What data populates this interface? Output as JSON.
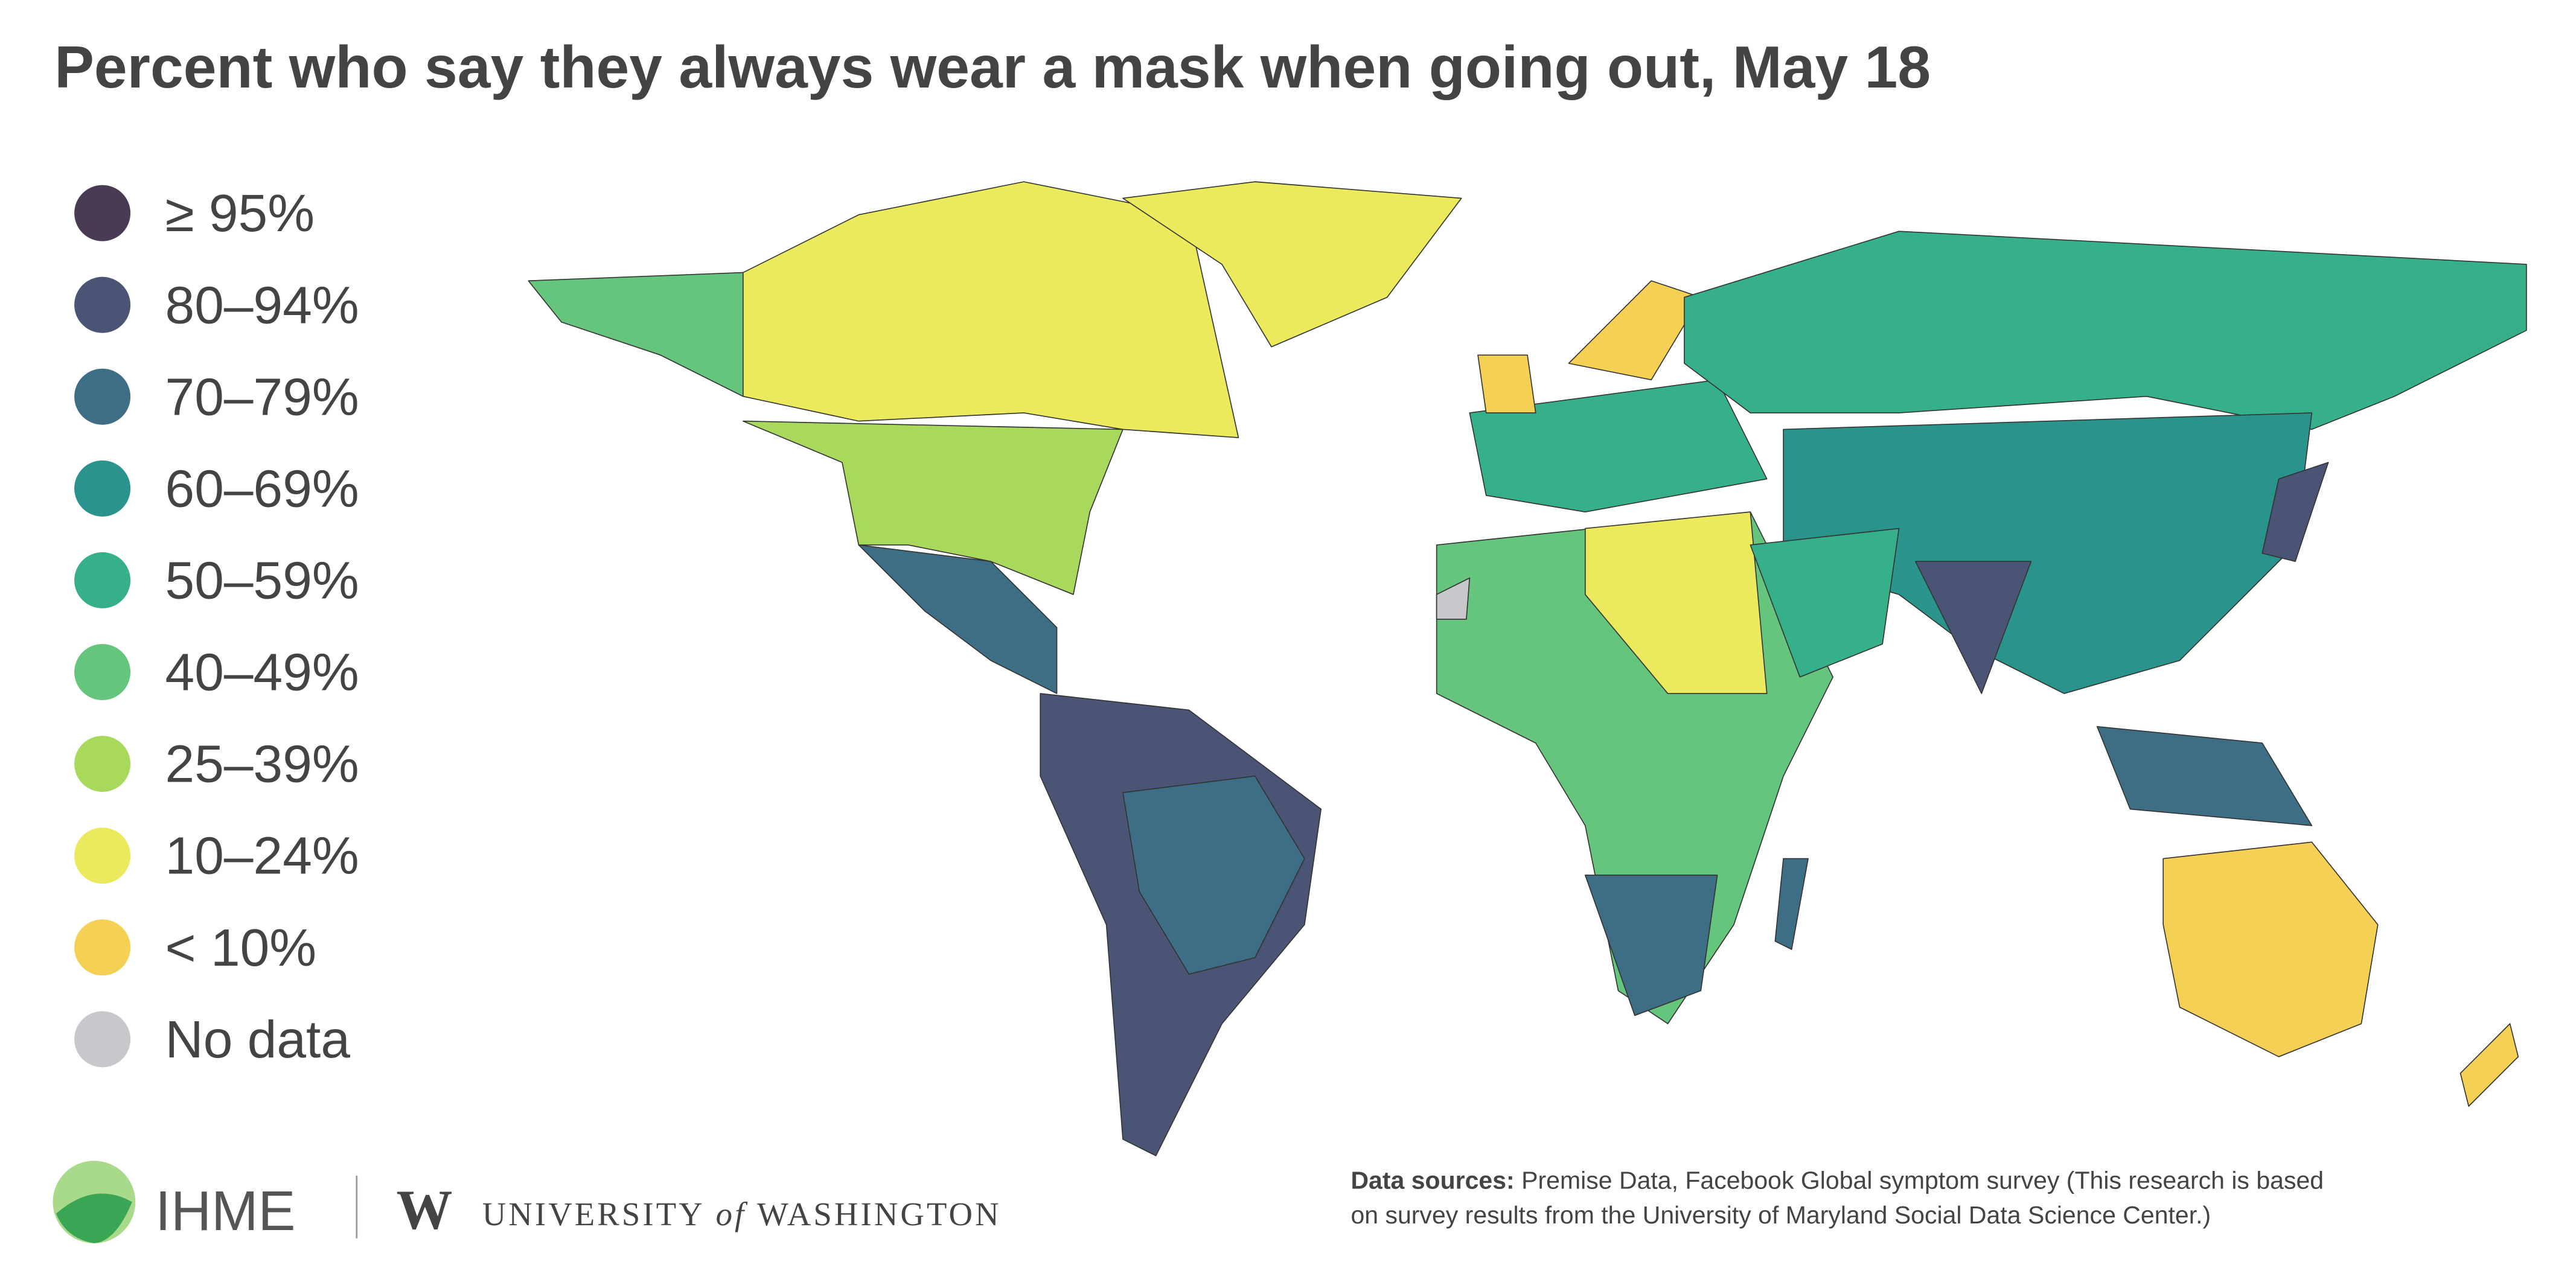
{
  "title": "Percent who say they always wear a mask when going out, May 18",
  "legend": [
    {
      "label": "≥ 95%",
      "color": "#4a3b55"
    },
    {
      "label": "80–94%",
      "color": "#4a5475"
    },
    {
      "label": "70–79%",
      "color": "#3d6e86"
    },
    {
      "label": "60–69%",
      "color": "#2a938b"
    },
    {
      "label": "50–59%",
      "color": "#35b08a"
    },
    {
      "label": "40–49%",
      "color": "#66c57c"
    },
    {
      "label": "25–39%",
      "color": "#a8d95c"
    },
    {
      "label": "10–24%",
      "color": "#ebea5c"
    },
    {
      "label": "< 10%",
      "color": "#f4d154"
    },
    {
      "label": "No data",
      "color": "#c8c8cc"
    }
  ],
  "logos": {
    "ihme": "IHME",
    "uw_mark": "W",
    "uw_name_1": "UNIVERSITY",
    "uw_of": "of",
    "uw_name_2": "WASHINGTON"
  },
  "sources": {
    "label": "Data sources:",
    "lines": [
      "Premise Data, Facebook Global symptom survey (This research is based",
      "on survey results from the University of Maryland Social Data Science Center.)"
    ]
  }
}
